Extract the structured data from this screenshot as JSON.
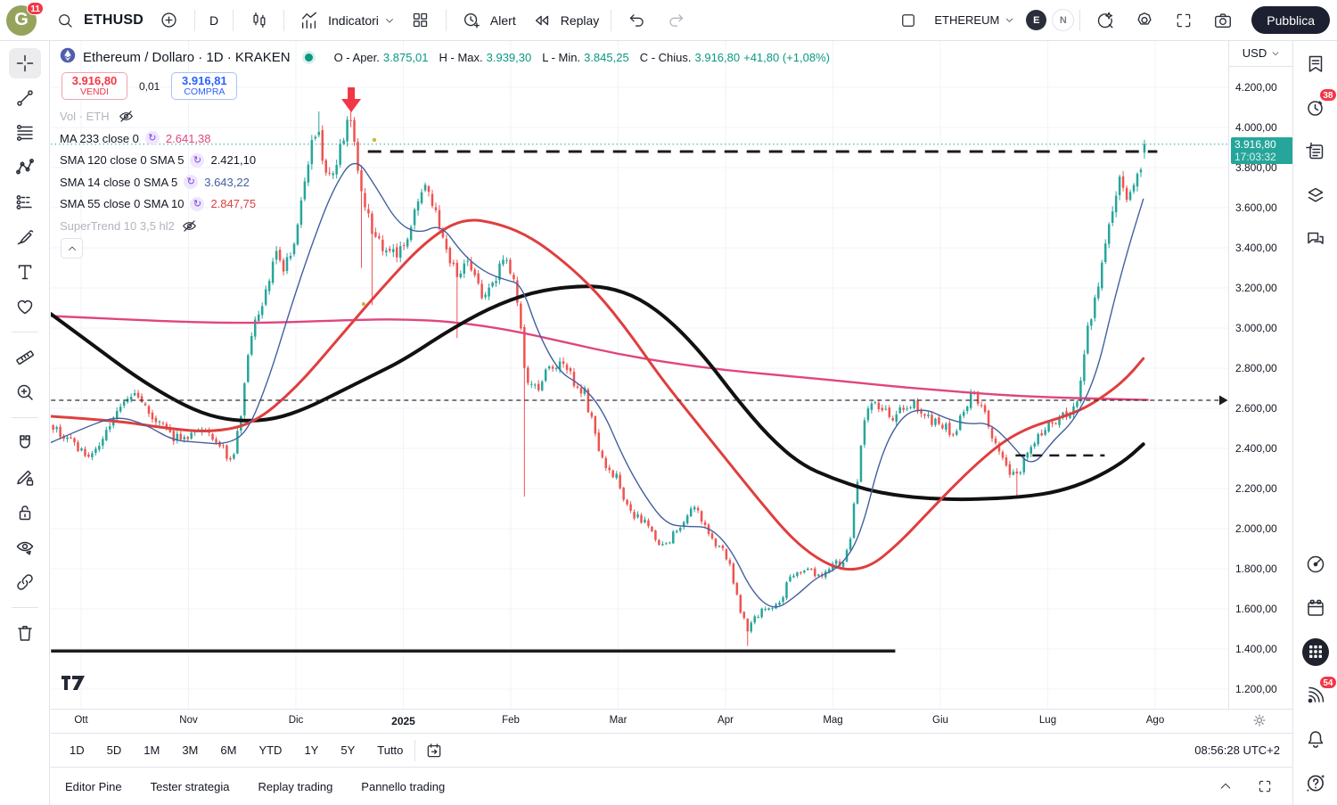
{
  "header": {
    "badge_count": "11",
    "symbol": "ETHUSD",
    "timeframe": "D",
    "indicators_label": "Indicatori",
    "alert_label": "Alert",
    "replay_label": "Replay",
    "layout_name": "ETHEREUM",
    "avatar_primary": "E",
    "avatar_secondary": "N",
    "publish_label": "Pubblica",
    "logo_letter": "G"
  },
  "legend": {
    "title": "Ethereum / Dollaro · 1D · KRAKEN",
    "ohlc": {
      "o_label": "O - Aper.",
      "o": "3.875,01",
      "h_label": "H - Max.",
      "h": "3.939,30",
      "l_label": "L - Min.",
      "l": "3.845,25",
      "c_label": "C - Chius.",
      "c": "3.916,80",
      "change": "+41,80 (+1,08%)",
      "value_color": "#089981"
    },
    "sell": {
      "price": "3.916,80",
      "label": "VENDI"
    },
    "spread": "0,01",
    "buy": {
      "price": "3.916,81",
      "label": "COMPRA"
    },
    "volume_row": "Vol · ETH",
    "indicators": [
      {
        "name": "MA 233 close 0",
        "value": "2.641,38",
        "color": "#e0457f",
        "hidden": false
      },
      {
        "name": "SMA 120 close 0 SMA 5",
        "value": "2.421,10",
        "color": "#131722",
        "hidden": false
      },
      {
        "name": "SMA 14 close 0 SMA 5",
        "value": "3.643,22",
        "color": "#44609f",
        "hidden": false
      },
      {
        "name": "SMA 55 close 0 SMA 10",
        "value": "2.847,75",
        "color": "#e03e3e",
        "hidden": false
      },
      {
        "name": "SuperTrend 10 3,5 hl2",
        "value": "",
        "color": "",
        "hidden": true
      }
    ]
  },
  "price_axis": {
    "currency": "USD",
    "last_price": "3.916,80",
    "countdown": "17:03:32",
    "badge_color": "#26a69a",
    "ticks": [
      {
        "label": "4.200,00",
        "value": 4200
      },
      {
        "label": "4.000,00",
        "value": 4000
      },
      {
        "label": "3.800,00",
        "value": 3800
      },
      {
        "label": "3.600,00",
        "value": 3600
      },
      {
        "label": "3.400,00",
        "value": 3400
      },
      {
        "label": "3.200,00",
        "value": 3200
      },
      {
        "label": "3.000,00",
        "value": 3000
      },
      {
        "label": "2.800,00",
        "value": 2800
      },
      {
        "label": "2.600,00",
        "value": 2600
      },
      {
        "label": "2.400,00",
        "value": 2400
      },
      {
        "label": "2.200,00",
        "value": 2200
      },
      {
        "label": "2.000,00",
        "value": 2000
      },
      {
        "label": "1.800,00",
        "value": 1800
      },
      {
        "label": "1.600,00",
        "value": 1600
      },
      {
        "label": "1.400,00",
        "value": 1400
      },
      {
        "label": "1.200,00",
        "value": 1200
      }
    ]
  },
  "time_axis": {
    "labels": [
      "Ott",
      "Nov",
      "Dic",
      "2025",
      "Feb",
      "Mar",
      "Apr",
      "Mag",
      "Giu",
      "Lug",
      "Ago"
    ]
  },
  "footer": {
    "ranges": [
      "1D",
      "5D",
      "1M",
      "3M",
      "6M",
      "YTD",
      "1Y",
      "5Y",
      "Tutto"
    ],
    "clock": "08:56:28 UTC+2"
  },
  "bottom_panel": {
    "tabs": [
      "Editor Pine",
      "Tester strategia",
      "Replay trading",
      "Pannello trading"
    ]
  },
  "sidebar_right": {
    "alert_badge": "38",
    "signal_badge": "54"
  },
  "chart_data": {
    "type": "candlestick",
    "title": "Ethereum / Dollaro 1D KRAKEN",
    "xlabel": "",
    "ylabel": "USD",
    "x_months": [
      "Ott",
      "Nov",
      "Dic",
      "2025",
      "Feb",
      "Mar",
      "Apr",
      "Mag",
      "Giu",
      "Lug",
      "Ago"
    ],
    "ylim": [
      1150,
      4413
    ],
    "grid": true,
    "colors": {
      "up": "#26a69a",
      "down": "#ef5350"
    },
    "last_candle": {
      "open": 3875.01,
      "high": 3939.3,
      "low": 3845.25,
      "close": 3916.8
    },
    "close_anchors": [
      [
        -0.26,
        2510
      ],
      [
        -0.16,
        2460
      ],
      [
        -0.06,
        2420
      ],
      [
        0.06,
        2350
      ],
      [
        0.18,
        2420
      ],
      [
        0.3,
        2530
      ],
      [
        0.42,
        2640
      ],
      [
        0.52,
        2680
      ],
      [
        0.62,
        2600
      ],
      [
        0.72,
        2520
      ],
      [
        0.82,
        2470
      ],
      [
        0.92,
        2450
      ],
      [
        1.02,
        2480
      ],
      [
        1.12,
        2520
      ],
      [
        1.22,
        2440
      ],
      [
        1.32,
        2390
      ],
      [
        1.42,
        2340
      ],
      [
        1.5,
        2620
      ],
      [
        1.58,
        2960
      ],
      [
        1.66,
        3060
      ],
      [
        1.74,
        3220
      ],
      [
        1.82,
        3380
      ],
      [
        1.9,
        3300
      ],
      [
        1.98,
        3420
      ],
      [
        2.06,
        3650
      ],
      [
        2.14,
        3900
      ],
      [
        2.2,
        3980
      ],
      [
        2.26,
        3840
      ],
      [
        2.33,
        3750
      ],
      [
        2.4,
        3870
      ],
      [
        2.47,
        3990
      ],
      [
        2.52,
        4040
      ],
      [
        2.58,
        3800
      ],
      [
        2.64,
        3620
      ],
      [
        2.7,
        3490
      ],
      [
        2.78,
        3430
      ],
      [
        2.86,
        3380
      ],
      [
        2.94,
        3350
      ],
      [
        3.02,
        3430
      ],
      [
        3.1,
        3560
      ],
      [
        3.18,
        3700
      ],
      [
        3.26,
        3640
      ],
      [
        3.34,
        3500
      ],
      [
        3.42,
        3360
      ],
      [
        3.5,
        3230
      ],
      [
        3.58,
        3330
      ],
      [
        3.66,
        3300
      ],
      [
        3.74,
        3160
      ],
      [
        3.82,
        3220
      ],
      [
        3.9,
        3290
      ],
      [
        3.98,
        3330
      ],
      [
        4.06,
        3160
      ],
      [
        4.13,
        2790
      ],
      [
        4.2,
        2690
      ],
      [
        4.28,
        2720
      ],
      [
        4.36,
        2800
      ],
      [
        4.44,
        2830
      ],
      [
        4.52,
        2780
      ],
      [
        4.6,
        2730
      ],
      [
        4.68,
        2690
      ],
      [
        4.76,
        2520
      ],
      [
        4.84,
        2350
      ],
      [
        4.92,
        2290
      ],
      [
        5.0,
        2240
      ],
      [
        5.08,
        2120
      ],
      [
        5.16,
        2060
      ],
      [
        5.24,
        2030
      ],
      [
        5.32,
        1970
      ],
      [
        5.4,
        1900
      ],
      [
        5.48,
        1950
      ],
      [
        5.56,
        2010
      ],
      [
        5.64,
        2070
      ],
      [
        5.72,
        2090
      ],
      [
        5.8,
        2030
      ],
      [
        5.88,
        1950
      ],
      [
        5.96,
        1900
      ],
      [
        6.04,
        1820
      ],
      [
        6.12,
        1630
      ],
      [
        6.2,
        1500
      ],
      [
        6.28,
        1560
      ],
      [
        6.36,
        1600
      ],
      [
        6.44,
        1590
      ],
      [
        6.52,
        1650
      ],
      [
        6.6,
        1760
      ],
      [
        6.7,
        1800
      ],
      [
        6.8,
        1780
      ],
      [
        6.9,
        1760
      ],
      [
        7.0,
        1840
      ],
      [
        7.08,
        1800
      ],
      [
        7.16,
        1960
      ],
      [
        7.23,
        2260
      ],
      [
        7.3,
        2560
      ],
      [
        7.38,
        2640
      ],
      [
        7.46,
        2600
      ],
      [
        7.54,
        2550
      ],
      [
        7.62,
        2580
      ],
      [
        7.72,
        2630
      ],
      [
        7.82,
        2580
      ],
      [
        7.92,
        2540
      ],
      [
        8.02,
        2520
      ],
      [
        8.12,
        2480
      ],
      [
        8.22,
        2570
      ],
      [
        8.3,
        2700
      ],
      [
        8.4,
        2580
      ],
      [
        8.5,
        2430
      ],
      [
        8.6,
        2320
      ],
      [
        8.68,
        2260
      ],
      [
        8.74,
        2290
      ],
      [
        8.82,
        2410
      ],
      [
        8.9,
        2450
      ],
      [
        9.0,
        2510
      ],
      [
        9.1,
        2550
      ],
      [
        9.2,
        2570
      ],
      [
        9.28,
        2640
      ],
      [
        9.36,
        2990
      ],
      [
        9.44,
        3130
      ],
      [
        9.5,
        3300
      ],
      [
        9.56,
        3520
      ],
      [
        9.62,
        3650
      ],
      [
        9.68,
        3740
      ],
      [
        9.73,
        3620
      ],
      [
        9.78,
        3680
      ],
      [
        9.83,
        3750
      ],
      [
        9.87,
        3820
      ],
      [
        9.9,
        3917
      ]
    ],
    "spikes": [
      {
        "t": 2.2,
        "high": 4080
      },
      {
        "t": 2.52,
        "high": 4093
      },
      {
        "t": 2.6,
        "low": 3300
      },
      {
        "t": 2.7,
        "low": 3115
      },
      {
        "t": 3.5,
        "low": 2950
      },
      {
        "t": 4.13,
        "low": 2160
      },
      {
        "t": 6.2,
        "low": 1415
      },
      {
        "t": 8.7,
        "low": 2155
      }
    ],
    "ma_lines": [
      {
        "name": "MA 233",
        "color": "#e0457f",
        "width": 2.4,
        "points": [
          [
            -0.28,
            3060
          ],
          [
            0.5,
            3040
          ],
          [
            1.0,
            3030
          ],
          [
            1.5,
            3025
          ],
          [
            2.0,
            3030
          ],
          [
            2.5,
            3040
          ],
          [
            3.0,
            3045
          ],
          [
            3.5,
            3030
          ],
          [
            4.0,
            2990
          ],
          [
            4.5,
            2930
          ],
          [
            5.0,
            2870
          ],
          [
            5.5,
            2825
          ],
          [
            6.0,
            2790
          ],
          [
            6.5,
            2765
          ],
          [
            7.0,
            2740
          ],
          [
            7.5,
            2712
          ],
          [
            8.0,
            2690
          ],
          [
            8.5,
            2668
          ],
          [
            9.0,
            2655
          ],
          [
            9.5,
            2647
          ],
          [
            9.93,
            2642
          ]
        ]
      },
      {
        "name": "SMA 120",
        "color": "#111111",
        "width": 4,
        "points": [
          [
            -0.28,
            3070
          ],
          [
            0.1,
            2920
          ],
          [
            0.5,
            2760
          ],
          [
            0.9,
            2630
          ],
          [
            1.2,
            2560
          ],
          [
            1.5,
            2535
          ],
          [
            1.8,
            2545
          ],
          [
            2.1,
            2600
          ],
          [
            2.4,
            2680
          ],
          [
            2.7,
            2760
          ],
          [
            3.0,
            2840
          ],
          [
            3.4,
            2980
          ],
          [
            3.8,
            3100
          ],
          [
            4.2,
            3180
          ],
          [
            4.6,
            3210
          ],
          [
            4.9,
            3205
          ],
          [
            5.2,
            3150
          ],
          [
            5.5,
            3030
          ],
          [
            5.8,
            2860
          ],
          [
            6.1,
            2650
          ],
          [
            6.4,
            2460
          ],
          [
            6.7,
            2320
          ],
          [
            7.0,
            2250
          ],
          [
            7.3,
            2195
          ],
          [
            7.6,
            2165
          ],
          [
            7.9,
            2150
          ],
          [
            8.2,
            2145
          ],
          [
            8.5,
            2150
          ],
          [
            8.8,
            2160
          ],
          [
            9.1,
            2185
          ],
          [
            9.4,
            2240
          ],
          [
            9.7,
            2330
          ],
          [
            9.89,
            2421
          ]
        ]
      },
      {
        "name": "SMA 55",
        "color": "#e03e3e",
        "width": 3,
        "points": [
          [
            -0.28,
            2560
          ],
          [
            0.3,
            2540
          ],
          [
            0.8,
            2500
          ],
          [
            1.2,
            2480
          ],
          [
            1.6,
            2520
          ],
          [
            2.0,
            2700
          ],
          [
            2.4,
            2950
          ],
          [
            2.8,
            3200
          ],
          [
            3.2,
            3430
          ],
          [
            3.55,
            3550
          ],
          [
            3.9,
            3520
          ],
          [
            4.2,
            3450
          ],
          [
            4.5,
            3330
          ],
          [
            4.8,
            3180
          ],
          [
            5.1,
            2980
          ],
          [
            5.4,
            2750
          ],
          [
            5.7,
            2550
          ],
          [
            6.0,
            2350
          ],
          [
            6.3,
            2150
          ],
          [
            6.6,
            1960
          ],
          [
            6.85,
            1850
          ],
          [
            7.1,
            1790
          ],
          [
            7.35,
            1810
          ],
          [
            7.6,
            1920
          ],
          [
            7.85,
            2060
          ],
          [
            8.1,
            2200
          ],
          [
            8.35,
            2330
          ],
          [
            8.6,
            2440
          ],
          [
            8.85,
            2510
          ],
          [
            9.1,
            2550
          ],
          [
            9.35,
            2600
          ],
          [
            9.6,
            2690
          ],
          [
            9.75,
            2760
          ],
          [
            9.89,
            2848
          ]
        ]
      },
      {
        "name": "SMA 14",
        "color": "#44609f",
        "width": 1.4,
        "points": [
          [
            -0.28,
            2430
          ],
          [
            0.1,
            2520
          ],
          [
            0.35,
            2560
          ],
          [
            0.6,
            2520
          ],
          [
            0.85,
            2440
          ],
          [
            1.1,
            2430
          ],
          [
            1.35,
            2420
          ],
          [
            1.55,
            2480
          ],
          [
            1.75,
            2750
          ],
          [
            1.95,
            3100
          ],
          [
            2.15,
            3420
          ],
          [
            2.35,
            3700
          ],
          [
            2.55,
            3860
          ],
          [
            2.75,
            3700
          ],
          [
            2.95,
            3520
          ],
          [
            3.15,
            3470
          ],
          [
            3.35,
            3520
          ],
          [
            3.55,
            3370
          ],
          [
            3.75,
            3280
          ],
          [
            3.95,
            3240
          ],
          [
            4.1,
            3220
          ],
          [
            4.25,
            2980
          ],
          [
            4.45,
            2780
          ],
          [
            4.65,
            2720
          ],
          [
            4.85,
            2600
          ],
          [
            5.05,
            2350
          ],
          [
            5.25,
            2160
          ],
          [
            5.45,
            2020
          ],
          [
            5.65,
            2010
          ],
          [
            5.85,
            2010
          ],
          [
            6.05,
            1900
          ],
          [
            6.25,
            1680
          ],
          [
            6.45,
            1590
          ],
          [
            6.65,
            1660
          ],
          [
            6.85,
            1760
          ],
          [
            7.05,
            1800
          ],
          [
            7.25,
            1950
          ],
          [
            7.45,
            2380
          ],
          [
            7.65,
            2570
          ],
          [
            7.85,
            2600
          ],
          [
            8.05,
            2550
          ],
          [
            8.25,
            2520
          ],
          [
            8.45,
            2530
          ],
          [
            8.65,
            2430
          ],
          [
            8.85,
            2300
          ],
          [
            9.05,
            2440
          ],
          [
            9.25,
            2540
          ],
          [
            9.45,
            2760
          ],
          [
            9.6,
            3100
          ],
          [
            9.75,
            3400
          ],
          [
            9.89,
            3643
          ]
        ]
      }
    ],
    "drawings": {
      "arrow_down": {
        "t": 2.515,
        "price": 4160,
        "color": "#f23645"
      },
      "resistance_dashed": {
        "price": 3880,
        "t1": 2.67,
        "t2": 10.02,
        "color": "#1c1c1c"
      },
      "current_price_line": {
        "price": 3916.8,
        "color": "#26a69a"
      },
      "mid_dashed_arrow": {
        "price": 2640,
        "t1": -0.28,
        "t2": 10.62,
        "color": "#2a2e39"
      },
      "short_dashed": {
        "price": 2365,
        "t1": 8.7,
        "t2": 9.53,
        "color": "#1c1c1c"
      },
      "support_solid": {
        "price": 1390,
        "t1": -0.28,
        "t2": 7.58,
        "color": "#1c1c1c"
      },
      "anchor_dots": [
        {
          "t": 2.73,
          "price": 3938
        },
        {
          "t": 2.63,
          "price": 3120
        }
      ]
    }
  }
}
